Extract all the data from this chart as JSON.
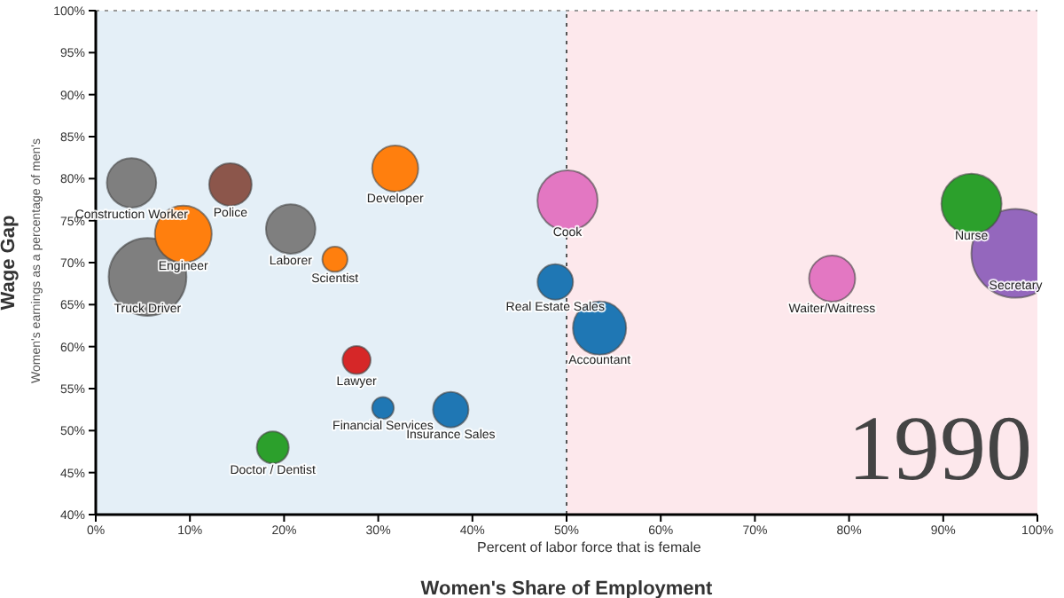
{
  "chart_data": {
    "type": "bubble",
    "xlabel": "Women's Share of Employment",
    "ylabel": "Wage Gap",
    "x": [
      5.5,
      3.8,
      9.3,
      14.3,
      20.7,
      25.4,
      31.8,
      27.7,
      30.5,
      37.7,
      18.8,
      50.1,
      48.8,
      53.5,
      78.2,
      97.7,
      93.0
    ],
    "values": [
      68.3,
      79.5,
      73.4,
      79.3,
      74,
      70.4,
      81.2,
      58.4,
      52.7,
      52.5,
      48,
      77.4,
      67.7,
      62.2,
      68.1,
      71.1,
      77
    ],
    "sizes": [
      0.77,
      0.31,
      0.41,
      0.23,
      0.31,
      0.08,
      0.27,
      0.1,
      0.06,
      0.16,
      0.13,
      0.46,
      0.16,
      0.36,
      0.27,
      1,
      0.46
    ],
    "colors": [
      "#7f7f7f",
      "#7f7f7f",
      "#ff7f0e",
      "#8c564b",
      "#7f7f7f",
      "#ff7f0e",
      "#ff7f0e",
      "#d62728",
      "#1f77b4",
      "#1f77b4",
      "#2ca02c",
      "#e377c2",
      "#1f77b4",
      "#1f77b4",
      "#e377c2",
      "#9467bd",
      "#2ca02c"
    ],
    "annotations": [
      {
        "text": "Truck Driver",
        "x": 5.5,
        "y": 68.3
      },
      {
        "text": "Construction Worker",
        "x": 3.8,
        "y": 79.5
      },
      {
        "text": "Engineer",
        "x": 9.3,
        "y": 73.4
      },
      {
        "text": "Police",
        "x": 14.3,
        "y": 79.3
      },
      {
        "text": "Laborer",
        "x": 20.7,
        "y": 74
      },
      {
        "text": "Scientist",
        "x": 25.4,
        "y": 70.4
      },
      {
        "text": "Developer",
        "x": 31.8,
        "y": 81.2
      },
      {
        "text": "Lawyer",
        "x": 27.7,
        "y": 58.4
      },
      {
        "text": "Financial Services",
        "x": 30.5,
        "y": 52.7
      },
      {
        "text": "Insurance Sales",
        "x": 37.7,
        "y": 52.5
      },
      {
        "text": "Doctor / Dentist",
        "x": 18.8,
        "y": 48
      },
      {
        "text": "Cook",
        "x": 50.1,
        "y": 77.4
      },
      {
        "text": "Real Estate Sales",
        "x": 48.8,
        "y": 67.7
      },
      {
        "text": "Accountant",
        "x": 53.5,
        "y": 62.2
      },
      {
        "text": "Waiter/Waitress",
        "x": 78.2,
        "y": 68.1
      },
      {
        "text": "Secretary",
        "x": 97.7,
        "y": 71.1
      },
      {
        "text": "Nurse",
        "x": 93.0,
        "y": 77
      },
      "1990",
      "Percent of labor force that is female",
      "Women's earnings as a percentage of men's"
    ],
    "xlim": [
      0,
      100
    ],
    "ylim": [
      40,
      100
    ],
    "xticks": [
      {
        "value": 0,
        "label": "0%"
      },
      {
        "value": 10,
        "label": "10%"
      },
      {
        "value": 20,
        "label": "20%"
      },
      {
        "value": 30,
        "label": "30%"
      },
      {
        "value": 40,
        "label": "40%"
      },
      {
        "value": 50,
        "label": "50%"
      },
      {
        "value": 60,
        "label": "60%"
      },
      {
        "value": 70,
        "label": "70%"
      },
      {
        "value": 80,
        "label": "80%"
      },
      {
        "value": 90,
        "label": "90%"
      },
      {
        "value": 100,
        "label": "100%"
      }
    ],
    "yticks": [
      {
        "value": 40,
        "label": "40%"
      },
      {
        "value": 45,
        "label": "45%"
      },
      {
        "value": 50,
        "label": "50%"
      },
      {
        "value": 55,
        "label": "55%"
      },
      {
        "value": 60,
        "label": "60%"
      },
      {
        "value": 65,
        "label": "65%"
      },
      {
        "value": 70,
        "label": "70%"
      },
      {
        "value": 75,
        "label": "75%"
      },
      {
        "value": 80,
        "label": "80%"
      },
      {
        "value": 85,
        "label": "85%"
      },
      {
        "value": 90,
        "label": "90%"
      },
      {
        "value": 95,
        "label": "95%"
      },
      {
        "value": 100,
        "label": "100%"
      }
    ],
    "bands": [
      {
        "axis": "x",
        "from": 0,
        "to": 50,
        "color": "#e4eff7"
      },
      {
        "axis": "x",
        "from": 50,
        "to": 100,
        "color": "#fde8ec"
      }
    ],
    "ref_lines": [
      {
        "axis": "x",
        "value": 50,
        "line_style": "dotted",
        "color": "#555555"
      },
      {
        "axis": "y",
        "value": 100,
        "line_style": "dotted",
        "color": "#999999"
      }
    ],
    "marker": "circle"
  }
}
